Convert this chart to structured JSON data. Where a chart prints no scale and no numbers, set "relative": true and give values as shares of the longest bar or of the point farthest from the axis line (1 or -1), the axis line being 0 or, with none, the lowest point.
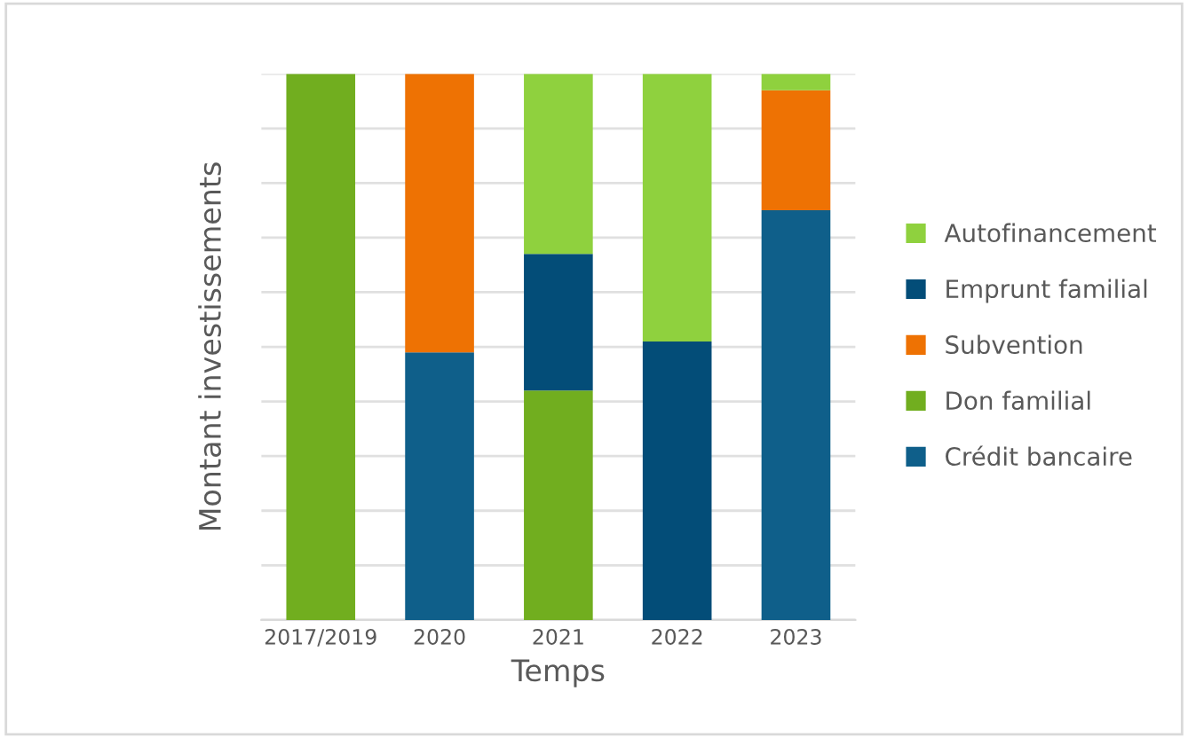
{
  "chart_data": {
    "type": "bar",
    "stacked": true,
    "relative": true,
    "xlabel": "Temps",
    "ylabel": "Montant investissements",
    "categories": [
      "2017/2019",
      "2020",
      "2021",
      "2022",
      "2023"
    ],
    "grid": "y",
    "legend": "right",
    "series": [
      {
        "name": "Crédit bancaire",
        "color": "#0f5f8a",
        "values": [
          null,
          0.49,
          null,
          null,
          0.75
        ]
      },
      {
        "name": "Don familial",
        "color": "#71ae1f",
        "values": [
          1,
          null,
          0.42,
          null,
          null
        ]
      },
      {
        "name": "Subvention",
        "color": "#ee7203",
        "values": [
          null,
          0.51,
          null,
          null,
          0.22
        ]
      },
      {
        "name": "Emprunt familial",
        "color": "#034d78",
        "values": [
          null,
          null,
          0.25,
          0.51,
          null
        ]
      },
      {
        "name": "Autofinancement",
        "color": "#8fd13e",
        "values": [
          null,
          null,
          0.33,
          0.49,
          0.03
        ]
      }
    ]
  }
}
